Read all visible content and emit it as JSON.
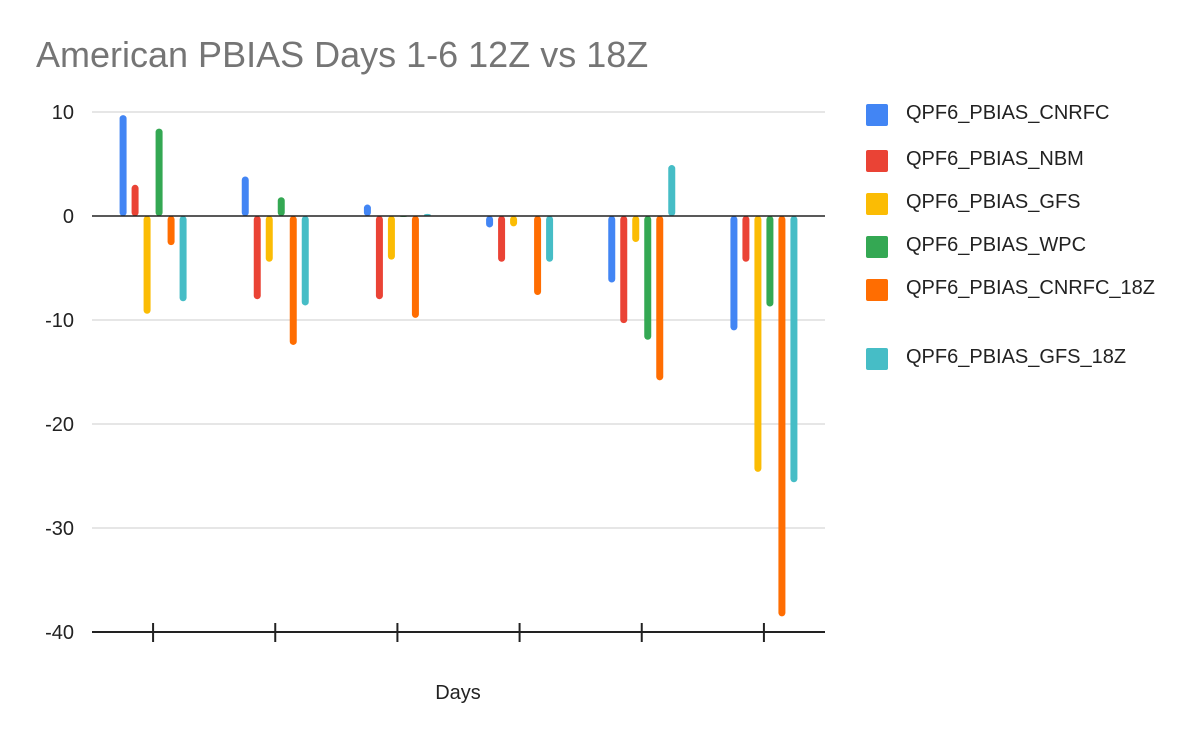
{
  "chart_data": {
    "type": "bar",
    "title": "American PBIAS Days 1-6 12Z vs 18Z",
    "xlabel": "Days",
    "ylabel": "",
    "categories": [
      "",
      "",
      "",
      "",
      "",
      ""
    ],
    "ylim": [
      -40,
      10
    ],
    "yticks": [
      10,
      0,
      -10,
      -20,
      -30,
      -40
    ],
    "grid": true,
    "legend_position": "right",
    "series": [
      {
        "name": "QPF6_PBIAS_CNRFC",
        "color": "#4285f4",
        "values": [
          9.7,
          3.8,
          1.1,
          -1.1,
          -6.4,
          -11.0
        ]
      },
      {
        "name": "QPF6_PBIAS_NBM",
        "color": "#ea4335",
        "values": [
          3.0,
          -8.0,
          -8.0,
          -4.4,
          -10.3,
          -4.4
        ]
      },
      {
        "name": "QPF6_PBIAS_GFS",
        "color": "#fbbc04",
        "values": [
          -9.4,
          -4.4,
          -4.2,
          -1.0,
          -2.5,
          -24.6
        ]
      },
      {
        "name": "QPF6_PBIAS_WPC",
        "color": "#34a853",
        "values": [
          8.4,
          1.8,
          -0.1,
          0.0,
          -11.9,
          -8.7
        ]
      },
      {
        "name": "QPF6_PBIAS_CNRFC_18Z",
        "color": "#ff6d01",
        "values": [
          -2.8,
          -12.4,
          -9.8,
          -7.6,
          -15.8,
          -38.5
        ]
      },
      {
        "name": "QPF6_PBIAS_GFS_18Z",
        "color": "#46bdc6",
        "values": [
          -8.2,
          -8.6,
          0.2,
          -4.4,
          4.9,
          -25.6
        ]
      }
    ]
  }
}
